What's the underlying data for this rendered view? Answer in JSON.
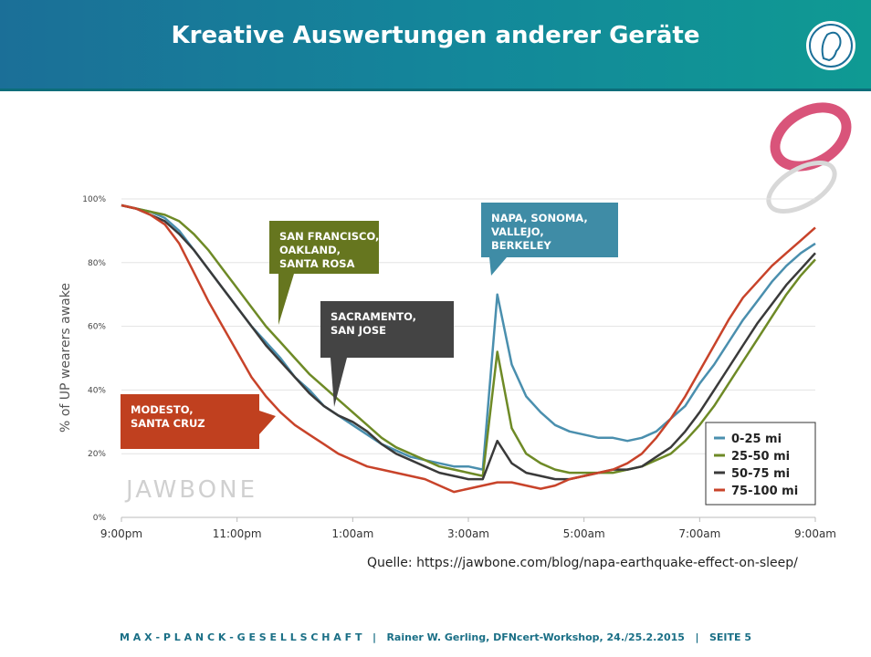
{
  "slide": {
    "title": "Kreative Auswertungen anderer Geräte",
    "source": "Quelle: https://jawbone.com/blog/napa-earthquake-effect-on-sleep/",
    "footer": "M A X - P L A N C K - G E S E L L S C H A F T   |   Rainer W. Gerling, DFNcert-Workshop, 24./25.2.2015   |   SEITE 5"
  },
  "chart_data": {
    "type": "line",
    "y_label": "% of UP wearers awake",
    "watermark": "JAWBONE",
    "categories": [
      "9:00pm",
      null,
      null,
      null,
      null,
      null,
      null,
      null,
      "11:00pm",
      null,
      null,
      null,
      null,
      null,
      null,
      null,
      "1:00am",
      null,
      null,
      null,
      null,
      null,
      null,
      null,
      "3:00am",
      null,
      null,
      null,
      null,
      null,
      null,
      null,
      "5:00am",
      null,
      null,
      null,
      null,
      null,
      null,
      null,
      "7:00am",
      null,
      null,
      null,
      null,
      null,
      null,
      null,
      "9:00am"
    ],
    "ylim": [
      0,
      100
    ],
    "yticks": [
      {
        "value": 0,
        "label": "0%"
      },
      {
        "value": 20,
        "label": "20%"
      },
      {
        "value": 40,
        "label": "40%"
      },
      {
        "value": 60,
        "label": "60%"
      },
      {
        "value": 80,
        "label": "80%"
      },
      {
        "value": 100,
        "label": "100%"
      }
    ],
    "grid": true,
    "legend": "lower-right",
    "series": [
      {
        "name": "0-25 mi",
        "color": "#4a8fae",
        "values": [
          98,
          97,
          96,
          94,
          90,
          84,
          78,
          72,
          66,
          60,
          55,
          50,
          44,
          40,
          35,
          32,
          29,
          26,
          23,
          21,
          19,
          18,
          17,
          16,
          16,
          15,
          70,
          48,
          38,
          33,
          29,
          27,
          26,
          25,
          25,
          24,
          25,
          27,
          31,
          35,
          42,
          48,
          55,
          62,
          68,
          74,
          79,
          83,
          86
        ]
      },
      {
        "name": "25-50 mi",
        "color": "#6e8a26",
        "values": [
          98,
          97,
          96,
          95,
          93,
          89,
          84,
          78,
          72,
          66,
          60,
          55,
          50,
          45,
          41,
          37,
          33,
          29,
          25,
          22,
          20,
          18,
          16,
          15,
          14,
          13,
          52,
          28,
          20,
          17,
          15,
          14,
          14,
          14,
          14,
          15,
          16,
          18,
          20,
          24,
          29,
          35,
          42,
          49,
          56,
          63,
          70,
          76,
          81
        ]
      },
      {
        "name": "50-75 mi",
        "color": "#3a3a3a",
        "values": [
          98,
          97,
          95,
          93,
          89,
          84,
          78,
          72,
          66,
          60,
          54,
          49,
          44,
          39,
          35,
          32,
          30,
          27,
          23,
          20,
          18,
          16,
          14,
          13,
          12,
          12,
          24,
          17,
          14,
          13,
          12,
          12,
          13,
          14,
          15,
          15,
          16,
          19,
          22,
          27,
          33,
          40,
          47,
          54,
          61,
          67,
          73,
          78,
          83
        ]
      },
      {
        "name": "75-100 mi",
        "color": "#c8432a",
        "values": [
          98,
          97,
          95,
          92,
          86,
          77,
          68,
          60,
          52,
          44,
          38,
          33,
          29,
          26,
          23,
          20,
          18,
          16,
          15,
          14,
          13,
          12,
          10,
          8,
          9,
          10,
          11,
          11,
          10,
          9,
          10,
          12,
          13,
          14,
          15,
          17,
          20,
          25,
          31,
          38,
          46,
          54,
          62,
          69,
          74,
          79,
          83,
          87,
          91
        ]
      }
    ],
    "annotations": [
      {
        "lines": [
          "SAN FRANCISCO,",
          "OAKLAND,",
          "SANTA ROSA"
        ],
        "color": "#66761f"
      },
      {
        "lines": [
          "SACRAMENTO,",
          "SAN JOSE"
        ],
        "color": "#444444"
      },
      {
        "lines": [
          "NAPA, SONOMA,",
          "VALLEJO,",
          "BERKELEY"
        ],
        "color": "#3f8ca6"
      },
      {
        "lines": [
          "MODESTO,",
          "SANTA CRUZ"
        ],
        "color": "#c0401f"
      }
    ]
  }
}
